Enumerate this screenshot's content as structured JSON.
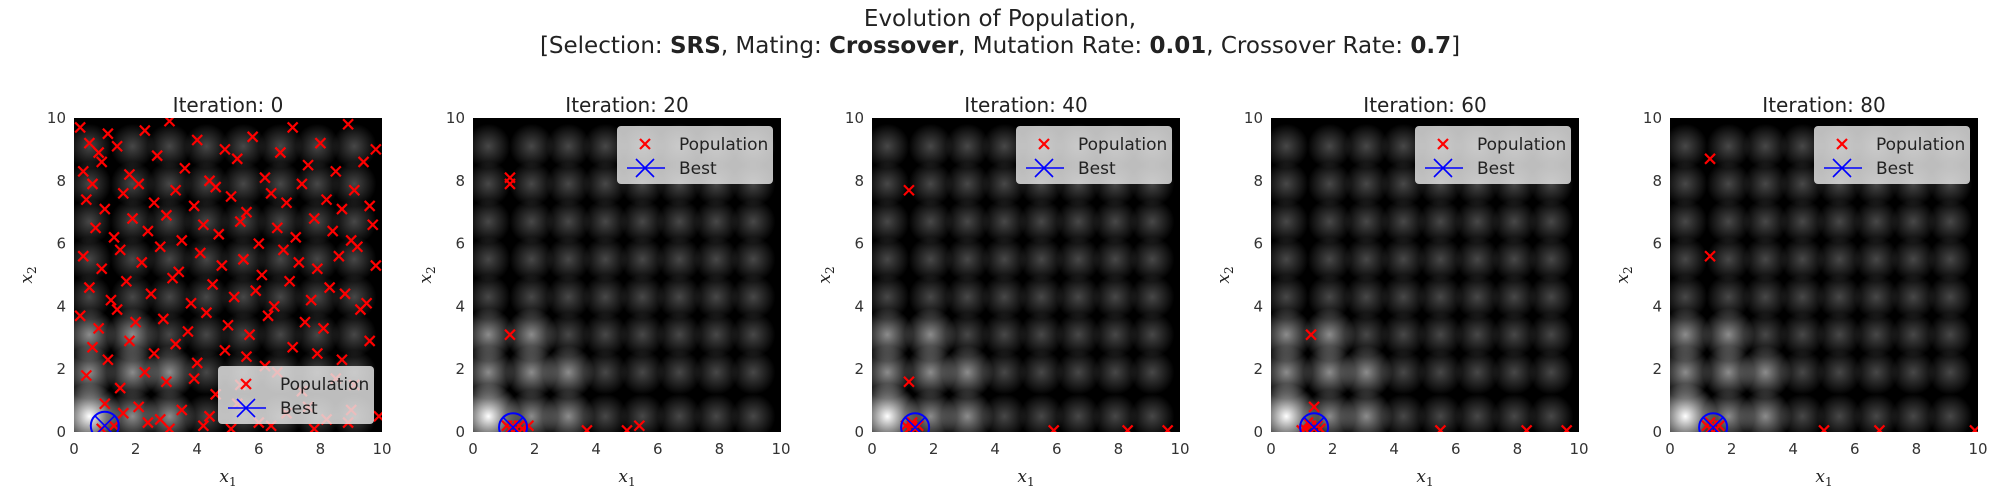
{
  "figure": {
    "title_line1": "Evolution of Population,",
    "title_line2": {
      "selection_label": "[Selection: ",
      "selection_value": "SRS",
      "mating_label": ", Mating: ",
      "mating_value": "Crossover",
      "mutation_label": ", Mutation Rate: ",
      "mutation_value": "0.01",
      "crossover_label": ", Crossover Rate: ",
      "crossover_value": "0.7",
      "close": "]"
    }
  },
  "colors": {
    "population": "#ff0000",
    "best": "#0000ff",
    "background_peak": "#ffffff",
    "background_base": "#000000"
  },
  "chart_data": [
    {
      "type": "scatter",
      "title": "Iteration: 0",
      "xlabel": "x_1",
      "ylabel": "x_2",
      "xlim": [
        0,
        10
      ],
      "ylim": [
        0,
        10
      ],
      "xticks": [
        "0",
        "2",
        "4",
        "6",
        "8",
        "10"
      ],
      "yticks": [
        "0",
        "2",
        "4",
        "6",
        "8",
        "10"
      ],
      "legend_position": "lower right",
      "grid": false,
      "background": "grayscale landscape, brightest near (0.5, 0.5)",
      "series": [
        {
          "name": "Population",
          "marker": "x",
          "color": "#ff0000",
          "x": [
            0.2,
            0.5,
            0.8,
            1.1,
            0.3,
            0.6,
            0.9,
            1.4,
            1.8,
            2.3,
            2.7,
            3.1,
            3.6,
            4.0,
            4.4,
            4.9,
            5.3,
            5.8,
            6.2,
            6.7,
            7.1,
            7.6,
            8.0,
            8.5,
            8.9,
            9.4,
            9.8,
            0.4,
            1.0,
            1.6,
            2.1,
            2.6,
            3.3,
            3.9,
            4.6,
            5.1,
            5.6,
            6.4,
            6.9,
            7.4,
            8.2,
            8.7,
            9.1,
            9.6,
            0.7,
            1.3,
            1.9,
            2.4,
            3.0,
            3.5,
            4.2,
            4.7,
            5.4,
            6.0,
            6.6,
            7.2,
            7.8,
            8.4,
            9.0,
            9.7,
            0.3,
            0.9,
            1.5,
            2.2,
            2.8,
            3.4,
            4.1,
            4.8,
            5.5,
            6.1,
            6.8,
            7.3,
            7.9,
            8.6,
            9.2,
            9.8,
            0.5,
            1.2,
            1.7,
            2.5,
            3.2,
            3.8,
            4.5,
            5.2,
            5.9,
            6.5,
            7.0,
            7.7,
            8.3,
            8.8,
            9.5,
            0.2,
            0.8,
            1.4,
            2.0,
            2.9,
            3.7,
            4.3,
            5.0,
            5.7,
            6.3,
            7.5,
            8.1,
            9.3,
            0.6,
            1.1,
            1.8,
            2.6,
            3.3,
            4.0,
            4.9,
            5.6,
            6.2,
            7.1,
            7.9,
            8.7,
            9.6,
            0.4,
            1.5,
            2.3,
            3.0,
            3.9,
            4.6,
            5.4,
            6.6,
            7.4,
            8.5,
            9.1,
            1.0,
            1.6,
            2.1,
            2.8,
            3.5,
            4.4,
            5.3,
            6.0,
            6.9,
            7.6,
            8.2,
            9.0,
            9.9,
            0.9,
            1.3,
            2.4,
            3.1,
            4.2,
            5.1,
            6.4,
            7.8,
            8.9
          ],
          "y": [
            9.7,
            9.2,
            8.9,
            9.5,
            8.3,
            7.9,
            8.6,
            9.1,
            8.2,
            9.6,
            8.8,
            9.9,
            8.4,
            9.3,
            8.0,
            9.0,
            8.7,
            9.4,
            8.1,
            8.9,
            9.7,
            8.5,
            9.2,
            8.3,
            9.8,
            8.6,
            9.0,
            7.4,
            7.1,
            7.6,
            7.9,
            7.3,
            7.7,
            7.2,
            7.8,
            7.5,
            7.0,
            7.6,
            7.3,
            7.9,
            7.4,
            7.1,
            7.7,
            7.2,
            6.5,
            6.2,
            6.8,
            6.4,
            6.9,
            6.1,
            6.6,
            6.3,
            6.7,
            6.0,
            6.5,
            6.2,
            6.8,
            6.4,
            6.1,
            6.6,
            5.6,
            5.2,
            5.8,
            5.4,
            5.9,
            5.1,
            5.7,
            5.3,
            5.5,
            5.0,
            5.8,
            5.4,
            5.2,
            5.6,
            5.9,
            5.3,
            4.6,
            4.2,
            4.8,
            4.4,
            4.9,
            4.1,
            4.7,
            4.3,
            4.5,
            4.0,
            4.8,
            4.2,
            4.6,
            4.4,
            4.1,
            3.7,
            3.3,
            3.9,
            3.5,
            3.6,
            3.2,
            3.8,
            3.4,
            3.1,
            3.7,
            3.5,
            3.3,
            3.9,
            2.7,
            2.3,
            2.9,
            2.5,
            2.8,
            2.2,
            2.6,
            2.4,
            2.1,
            2.7,
            2.5,
            2.3,
            2.9,
            1.8,
            1.4,
            1.9,
            1.6,
            1.7,
            1.2,
            1.5,
            1.9,
            1.3,
            1.7,
            1.5,
            0.9,
            0.6,
            0.8,
            0.4,
            0.7,
            0.5,
            0.9,
            0.3,
            0.6,
            0.8,
            0.4,
            0.7,
            0.5,
            0.1,
            0.2,
            0.3,
            0.1,
            0.2,
            0.1,
            0.2,
            0.1,
            0.3
          ]
        },
        {
          "name": "Best",
          "marker": "circle-x",
          "color": "#0000ff",
          "x": [
            1.0
          ],
          "y": [
            0.2
          ]
        }
      ]
    },
    {
      "type": "scatter",
      "title": "Iteration: 20",
      "xlabel": "x_1",
      "ylabel": "x_2",
      "xlim": [
        0,
        10
      ],
      "ylim": [
        0,
        10
      ],
      "xticks": [
        "0",
        "2",
        "4",
        "6",
        "8",
        "10"
      ],
      "yticks": [
        "0",
        "2",
        "4",
        "6",
        "8",
        "10"
      ],
      "legend_position": "upper right",
      "grid": false,
      "series": [
        {
          "name": "Population",
          "marker": "x",
          "color": "#ff0000",
          "x": [
            1.2,
            1.2,
            1.2,
            1.1,
            1.2,
            1.3,
            1.4,
            1.5,
            1.6,
            1.8,
            3.7,
            5.0,
            5.4
          ],
          "y": [
            8.1,
            7.9,
            3.1,
            0.2,
            0.1,
            0.2,
            0.1,
            0.2,
            0.1,
            0.2,
            0.05,
            0.05,
            0.2
          ]
        },
        {
          "name": "Best",
          "marker": "circle-x",
          "color": "#0000ff",
          "x": [
            1.3
          ],
          "y": [
            0.15
          ]
        }
      ]
    },
    {
      "type": "scatter",
      "title": "Iteration: 40",
      "xlabel": "x_1",
      "ylabel": "x_2",
      "xlim": [
        0,
        10
      ],
      "ylim": [
        0,
        10
      ],
      "xticks": [
        "0",
        "2",
        "4",
        "6",
        "8",
        "10"
      ],
      "yticks": [
        "0",
        "2",
        "4",
        "6",
        "8",
        "10"
      ],
      "legend_position": "upper right",
      "grid": false,
      "series": [
        {
          "name": "Population",
          "marker": "x",
          "color": "#ff0000",
          "x": [
            1.2,
            1.2,
            1.1,
            1.2,
            1.3,
            1.4,
            1.5,
            1.3,
            5.9,
            8.3,
            9.6
          ],
          "y": [
            7.7,
            1.6,
            0.2,
            0.1,
            0.2,
            0.1,
            0.2,
            0.3,
            0.05,
            0.05,
            0.05
          ]
        },
        {
          "name": "Best",
          "marker": "circle-x",
          "color": "#0000ff",
          "x": [
            1.4
          ],
          "y": [
            0.15
          ]
        }
      ]
    },
    {
      "type": "scatter",
      "title": "Iteration: 60",
      "xlabel": "x_1",
      "ylabel": "x_2",
      "xlim": [
        0,
        10
      ],
      "ylim": [
        0,
        10
      ],
      "xticks": [
        "0",
        "2",
        "4",
        "6",
        "8",
        "10"
      ],
      "yticks": [
        "0",
        "2",
        "4",
        "6",
        "8",
        "10"
      ],
      "legend_position": "upper right",
      "grid": false,
      "series": [
        {
          "name": "Population",
          "marker": "x",
          "color": "#ff0000",
          "x": [
            1.3,
            1.4,
            1.2,
            1.3,
            1.4,
            1.5,
            1.1,
            1.6,
            1.0,
            5.5,
            8.3,
            9.6
          ],
          "y": [
            3.1,
            0.8,
            0.3,
            0.2,
            0.1,
            0.2,
            0.1,
            0.1,
            0.05,
            0.05,
            0.05,
            0.05
          ]
        },
        {
          "name": "Best",
          "marker": "circle-x",
          "color": "#0000ff",
          "x": [
            1.4
          ],
          "y": [
            0.15
          ]
        }
      ]
    },
    {
      "type": "scatter",
      "title": "Iteration: 80",
      "xlabel": "x_1",
      "ylabel": "x_2",
      "xlim": [
        0,
        10
      ],
      "ylim": [
        0,
        10
      ],
      "xticks": [
        "0",
        "2",
        "4",
        "6",
        "8",
        "10"
      ],
      "yticks": [
        "0",
        "2",
        "4",
        "6",
        "8",
        "10"
      ],
      "legend_position": "upper right",
      "grid": false,
      "series": [
        {
          "name": "Population",
          "marker": "x",
          "color": "#ff0000",
          "x": [
            1.3,
            1.3,
            1.2,
            1.3,
            1.4,
            1.5,
            1.6,
            1.3,
            5.0,
            6.8,
            9.9
          ],
          "y": [
            8.7,
            5.6,
            0.2,
            0.1,
            0.2,
            0.1,
            0.2,
            0.3,
            0.05,
            0.05,
            0.05
          ]
        },
        {
          "name": "Best",
          "marker": "circle-x",
          "color": "#0000ff",
          "x": [
            1.4
          ],
          "y": [
            0.15
          ]
        }
      ]
    }
  ]
}
